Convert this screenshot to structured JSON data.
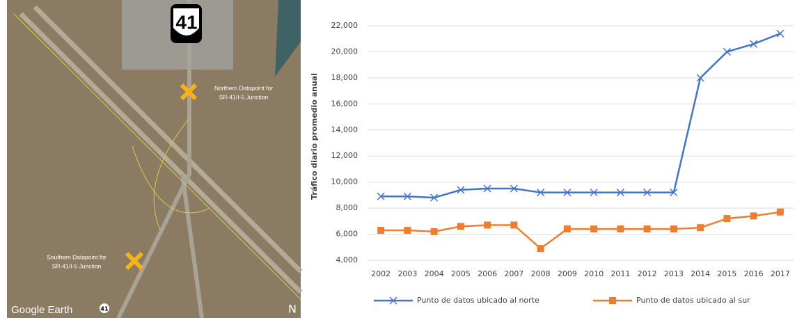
{
  "map": {
    "shield": "41",
    "north_label": [
      "Northern Datapoint for",
      "SR-41/I-5 Junction"
    ],
    "south_label": [
      "Southern Datapoint for",
      "SR-41/I-5 Junction"
    ],
    "brand": "Google Earth",
    "route_marker": "41",
    "compass": "N"
  },
  "chart_data": {
    "type": "line",
    "y_label": "Tráfico diario promedio anual",
    "categories": [
      "2002",
      "2003",
      "2004",
      "2005",
      "2006",
      "2007",
      "2008",
      "2009",
      "2010",
      "2011",
      "2012",
      "2013",
      "2014",
      "2015",
      "2016",
      "2017"
    ],
    "series": [
      {
        "name": "Punto de datos ubicado al norte",
        "color": "#4472c4",
        "marker": "x",
        "values": [
          8900,
          8900,
          8800,
          9400,
          9500,
          9500,
          9200,
          9200,
          9200,
          9200,
          9200,
          9200,
          18000,
          20000,
          20600,
          21400
        ]
      },
      {
        "name": "Punto de datos ubicado al sur",
        "color": "#ed7d31",
        "marker": "square",
        "values": [
          6300,
          6300,
          6200,
          6600,
          6700,
          6700,
          4900,
          6400,
          6400,
          6400,
          6400,
          6400,
          6500,
          7200,
          7400,
          7700
        ]
      }
    ],
    "ylim": [
      4000,
      22000
    ],
    "yticks": [
      {
        "value": 4000,
        "label": "4,000"
      },
      {
        "value": 6000,
        "label": "6,000"
      },
      {
        "value": 8000,
        "label": "8,000"
      },
      {
        "value": 10000,
        "label": "10,000"
      },
      {
        "value": 12000,
        "label": "12,000"
      },
      {
        "value": 14000,
        "label": "14,000"
      },
      {
        "value": 16000,
        "label": "16,000"
      },
      {
        "value": 18000,
        "label": "18,000"
      },
      {
        "value": 20000,
        "label": "20,000"
      },
      {
        "value": 22000,
        "label": "22,000"
      }
    ],
    "grid": true,
    "legend": "bottom"
  }
}
